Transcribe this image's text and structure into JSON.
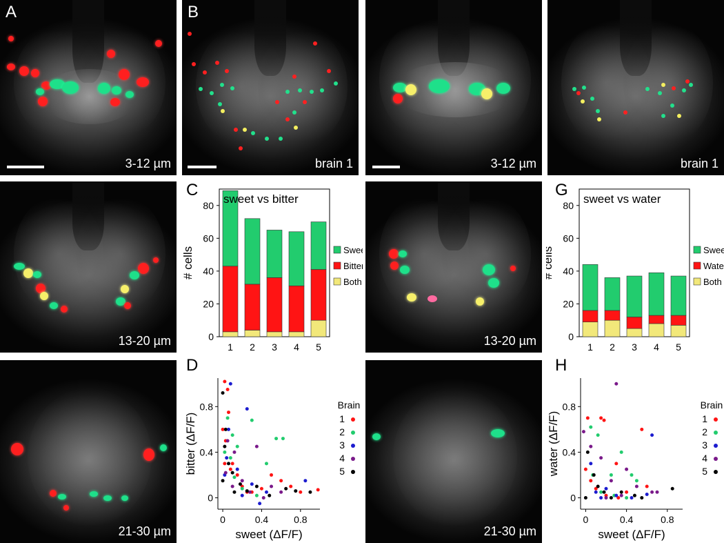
{
  "panels": {
    "A": {
      "letter": "A"
    },
    "B": {
      "letter": "B"
    },
    "C": {
      "letter": "C"
    },
    "D": {
      "letter": "D"
    },
    "G": {
      "letter": "G"
    },
    "H": {
      "letter": "H"
    }
  },
  "image_labels": {
    "row1_left": "3-12 µm",
    "row1_brain": "brain 1",
    "row1_right": "3-12 µm",
    "row1_brain_right": "brain 1",
    "row2_left": "13-20 µm",
    "row2_right": "13-20 µm",
    "row3_left": "21-30 µm",
    "row3_right": "21-30 µm"
  },
  "colors": {
    "sweet": "#22cc6e",
    "bitter": "#ff1414",
    "water": "#ff1414",
    "both": "#f2e87a"
  },
  "chart_data": [
    {
      "id": "C",
      "type": "bar",
      "stacked": true,
      "title": "sweet vs bitter",
      "ylabel": "# cells",
      "categories": [
        "1",
        "2",
        "3",
        "4",
        "5"
      ],
      "yticks": [
        "0",
        "20",
        "40",
        "60",
        "80"
      ],
      "ylim": [
        0,
        90
      ],
      "series": [
        {
          "name": "Both",
          "values": [
            3,
            4,
            3,
            3,
            10
          ]
        },
        {
          "name": "Bitter",
          "values": [
            40,
            28,
            33,
            28,
            31
          ]
        },
        {
          "name": "Sweet",
          "values": [
            46,
            40,
            29,
            33,
            29
          ]
        }
      ],
      "legend": [
        "Sweet",
        "Bitter",
        "Both"
      ]
    },
    {
      "id": "G",
      "type": "bar",
      "stacked": true,
      "title": "sweet vs water",
      "ylabel": "# cells",
      "categories": [
        "1",
        "2",
        "3",
        "4",
        "5"
      ],
      "yticks": [
        "0",
        "20",
        "40",
        "60",
        "80"
      ],
      "ylim": [
        0,
        90
      ],
      "series": [
        {
          "name": "Both",
          "values": [
            9,
            10,
            5,
            8,
            7
          ]
        },
        {
          "name": "Water",
          "values": [
            7,
            6,
            7,
            5,
            6
          ]
        },
        {
          "name": "Sweet",
          "values": [
            28,
            20,
            25,
            26,
            24
          ]
        }
      ],
      "legend": [
        "Sweet",
        "Water",
        "Both"
      ]
    },
    {
      "id": "D",
      "type": "scatter",
      "xlabel": "sweet (ΔF/F)",
      "ylabel": "bitter (ΔF/F)",
      "xticks": [
        "0",
        "0.4",
        "0.8"
      ],
      "yticks": [
        "0",
        "0.4",
        "0.8"
      ],
      "xlim": [
        -0.05,
        1.0
      ],
      "ylim": [
        -0.1,
        1.05
      ],
      "legend_title": "Brain",
      "series": [
        {
          "name": "1",
          "color": "#ff1414",
          "points": [
            [
              0.02,
              1.02
            ],
            [
              0.05,
              0.95
            ],
            [
              0.0,
              0.6
            ],
            [
              0.03,
              0.5
            ],
            [
              0.06,
              0.75
            ],
            [
              0.1,
              0.3
            ],
            [
              0.15,
              0.2
            ],
            [
              0.2,
              0.1
            ],
            [
              0.3,
              0.05
            ],
            [
              0.4,
              0.08
            ],
            [
              0.5,
              0.2
            ],
            [
              0.6,
              0.15
            ],
            [
              0.7,
              0.1
            ],
            [
              0.8,
              0.05
            ],
            [
              0.98,
              0.07
            ],
            [
              0.02,
              0.3
            ],
            [
              0.08,
              0.25
            ],
            [
              0.25,
              0.05
            ]
          ]
        },
        {
          "name": "2",
          "color": "#22cc6e",
          "points": [
            [
              0.05,
              0.7
            ],
            [
              0.1,
              0.55
            ],
            [
              0.08,
              0.35
            ],
            [
              0.3,
              0.68
            ],
            [
              0.55,
              0.52
            ],
            [
              0.62,
              0.52
            ],
            [
              0.45,
              0.3
            ],
            [
              0.12,
              0.18
            ],
            [
              0.2,
              0.08
            ],
            [
              0.35,
              0.02
            ],
            [
              0.02,
              0.4
            ],
            [
              0.15,
              0.45
            ]
          ]
        },
        {
          "name": "3",
          "color": "#1c1ccf",
          "points": [
            [
              0.08,
              1.0
            ],
            [
              0.06,
              0.6
            ],
            [
              0.25,
              0.78
            ],
            [
              0.04,
              0.35
            ],
            [
              0.15,
              0.25
            ],
            [
              0.3,
              0.12
            ],
            [
              0.45,
              0.05
            ],
            [
              0.85,
              0.15
            ],
            [
              0.2,
              0.02
            ],
            [
              0.02,
              0.2
            ],
            [
              0.38,
              -0.05
            ]
          ]
        },
        {
          "name": "4",
          "color": "#7a1a8a",
          "points": [
            [
              0.05,
              0.5
            ],
            [
              0.12,
              0.4
            ],
            [
              0.35,
              0.45
            ],
            [
              0.2,
              0.15
            ],
            [
              0.28,
              0.05
            ],
            [
              0.5,
              0.1
            ],
            [
              0.42,
              0.0
            ],
            [
              0.1,
              0.1
            ],
            [
              0.03,
              0.22
            ],
            [
              0.6,
              0.05
            ]
          ]
        },
        {
          "name": "5",
          "color": "#000000",
          "points": [
            [
              0.0,
              0.92
            ],
            [
              0.03,
              0.6
            ],
            [
              0.02,
              0.45
            ],
            [
              0.06,
              0.3
            ],
            [
              0.1,
              0.22
            ],
            [
              0.18,
              0.12
            ],
            [
              0.25,
              0.06
            ],
            [
              0.35,
              0.1
            ],
            [
              0.48,
              0.02
            ],
            [
              0.65,
              0.08
            ],
            [
              0.75,
              0.06
            ],
            [
              0.9,
              0.05
            ],
            [
              0.0,
              0.15
            ],
            [
              0.12,
              0.05
            ]
          ]
        }
      ]
    },
    {
      "id": "H",
      "type": "scatter",
      "xlabel": "sweet (ΔF/F)",
      "ylabel": "water (ΔF/F)",
      "xticks": [
        "0",
        "0.4",
        "0.8"
      ],
      "yticks": [
        "0",
        "0.4",
        "0.8"
      ],
      "xlim": [
        -0.05,
        0.95
      ],
      "ylim": [
        -0.1,
        1.05
      ],
      "legend_title": "Brain",
      "series": [
        {
          "name": "1",
          "color": "#ff1414",
          "points": [
            [
              0.02,
              0.7
            ],
            [
              0.15,
              0.7
            ],
            [
              0.18,
              0.68
            ],
            [
              0.0,
              0.25
            ],
            [
              0.05,
              0.15
            ],
            [
              0.1,
              0.08
            ],
            [
              0.3,
              0.3
            ],
            [
              0.4,
              0.05
            ],
            [
              0.55,
              0.6
            ],
            [
              0.6,
              0.1
            ],
            [
              0.2,
              0.02
            ],
            [
              0.32,
              0.0
            ]
          ]
        },
        {
          "name": "2",
          "color": "#22cc6e",
          "points": [
            [
              0.05,
              0.62
            ],
            [
              0.12,
              0.55
            ],
            [
              0.25,
              0.2
            ],
            [
              0.35,
              0.4
            ],
            [
              0.45,
              0.2
            ],
            [
              0.5,
              0.15
            ],
            [
              0.15,
              0.05
            ],
            [
              0.28,
              0.02
            ],
            [
              0.4,
              0.0
            ],
            [
              0.07,
              0.2
            ]
          ]
        },
        {
          "name": "3",
          "color": "#1c1ccf",
          "points": [
            [
              0.65,
              0.55
            ],
            [
              0.05,
              0.3
            ],
            [
              0.1,
              0.05
            ],
            [
              0.2,
              0.08
            ],
            [
              0.3,
              0.02
            ],
            [
              0.45,
              0.0
            ],
            [
              0.6,
              0.03
            ],
            [
              0.15,
              0.0
            ]
          ]
        },
        {
          "name": "4",
          "color": "#7a1a8a",
          "points": [
            [
              0.3,
              1.0
            ],
            [
              -0.02,
              0.58
            ],
            [
              0.05,
              0.45
            ],
            [
              0.15,
              0.35
            ],
            [
              0.25,
              0.15
            ],
            [
              0.4,
              0.25
            ],
            [
              0.5,
              0.1
            ],
            [
              0.35,
              0.02
            ],
            [
              0.2,
              0.0
            ],
            [
              0.65,
              0.05
            ],
            [
              0.7,
              0.05
            ]
          ]
        },
        {
          "name": "5",
          "color": "#000000",
          "points": [
            [
              0.02,
              0.4
            ],
            [
              0.08,
              0.2
            ],
            [
              0.12,
              0.1
            ],
            [
              0.18,
              0.05
            ],
            [
              0.25,
              0.0
            ],
            [
              0.35,
              0.05
            ],
            [
              0.48,
              0.02
            ],
            [
              0.55,
              0.0
            ],
            [
              0.85,
              0.08
            ],
            [
              0.0,
              0.0
            ]
          ]
        }
      ]
    }
  ]
}
